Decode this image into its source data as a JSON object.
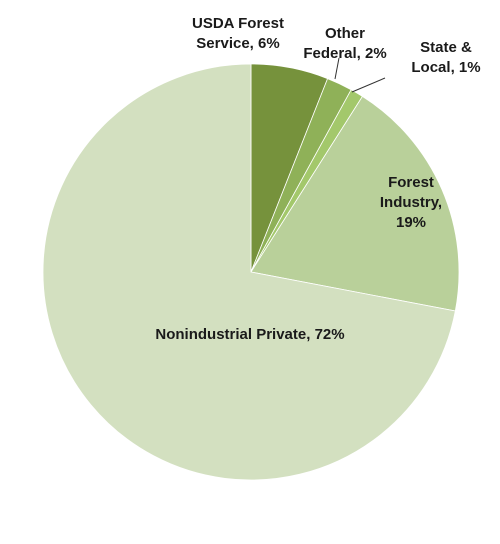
{
  "chart_data": {
    "type": "pie",
    "slices": [
      {
        "label": [
          "USDA Forest",
          "Service, 6%"
        ],
        "value": 6,
        "color": "#76923c"
      },
      {
        "label": [
          "Other",
          "Federal, 2%"
        ],
        "value": 2,
        "color": "#8fb158"
      },
      {
        "label": [
          "State &",
          "Local, 1%"
        ],
        "value": 1,
        "color": "#a3c86b"
      },
      {
        "label": [
          "Forest",
          "Industry,",
          "19%"
        ],
        "value": 19,
        "color": "#b9d09a"
      },
      {
        "label": [
          "Nonindustrial Private, 72%"
        ],
        "value": 72,
        "color": "#d3e0c0"
      }
    ],
    "start_angle": "12 o'clock",
    "direction": "clockwise",
    "legend": "none"
  }
}
